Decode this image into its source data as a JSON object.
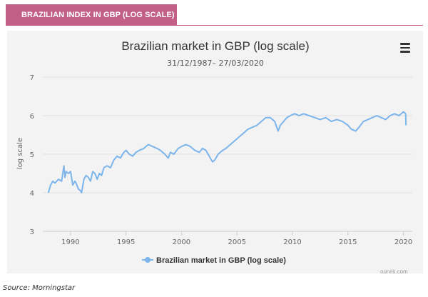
{
  "banner": {
    "title": "BRAZILIAN INDEX IN GBP (LOG SCALE)"
  },
  "source": "Source: Morningstar",
  "credit": "ourvis.com",
  "colors": {
    "banner": "#c15f87",
    "line": "#7cb5ec",
    "background": "#f3f3f3"
  },
  "menu_icon": "hamburger-menu-icon",
  "chart_data": {
    "type": "line",
    "title": "Brazilian market in GBP (log scale)",
    "subtitle": "31/12/1987– 27/03/2020",
    "xlabel": "",
    "ylabel": "log scale",
    "xlim": [
      1987.5,
      2020.8
    ],
    "ylim": [
      3,
      7
    ],
    "y_ticks": [
      "3",
      "4",
      "5",
      "6",
      "7"
    ],
    "x_ticks": [
      "1990",
      "1995",
      "2000",
      "2005",
      "2010",
      "2015",
      "2020"
    ],
    "grid": "horizontal",
    "legend": "bottom-center",
    "series": [
      {
        "name": "Brazilian market in GBP (log scale)",
        "x": [
          1988.0,
          1988.2,
          1988.4,
          1988.6,
          1988.9,
          1989.2,
          1989.4,
          1989.5,
          1989.6,
          1989.8,
          1990.0,
          1990.2,
          1990.4,
          1990.5,
          1990.7,
          1990.9,
          1991.0,
          1991.2,
          1991.4,
          1991.6,
          1991.8,
          1992.0,
          1992.2,
          1992.4,
          1992.6,
          1992.8,
          1993.0,
          1993.3,
          1993.6,
          1993.9,
          1994.2,
          1994.5,
          1994.8,
          1995.0,
          1995.3,
          1995.6,
          1995.9,
          1996.2,
          1996.6,
          1997.0,
          1997.4,
          1997.8,
          1998.1,
          1998.5,
          1998.8,
          1999.0,
          1999.3,
          1999.7,
          2000.0,
          2000.4,
          2000.8,
          2001.2,
          2001.6,
          2001.9,
          2002.2,
          2002.5,
          2002.8,
          2003.0,
          2003.3,
          2003.7,
          2004.0,
          2004.4,
          2004.8,
          2005.2,
          2005.6,
          2006.0,
          2006.4,
          2006.8,
          2007.2,
          2007.6,
          2008.0,
          2008.4,
          2008.7,
          2008.9,
          2009.2,
          2009.5,
          2009.8,
          2010.2,
          2010.6,
          2011.0,
          2011.5,
          2012.0,
          2012.5,
          2013.0,
          2013.5,
          2014.0,
          2014.5,
          2015.0,
          2015.3,
          2015.7,
          2016.0,
          2016.4,
          2016.8,
          2017.2,
          2017.6,
          2018.0,
          2018.4,
          2018.8,
          2019.2,
          2019.6,
          2020.0,
          2020.2,
          2020.23
        ],
        "values": [
          4.0,
          4.2,
          4.3,
          4.25,
          4.35,
          4.3,
          4.7,
          4.4,
          4.55,
          4.5,
          4.55,
          4.2,
          4.3,
          4.25,
          4.1,
          4.05,
          4.0,
          4.35,
          4.45,
          4.4,
          4.3,
          4.55,
          4.5,
          4.35,
          4.5,
          4.45,
          4.65,
          4.7,
          4.65,
          4.85,
          4.95,
          4.9,
          5.05,
          5.1,
          5.0,
          4.95,
          5.05,
          5.1,
          5.15,
          5.25,
          5.2,
          5.15,
          5.1,
          5.0,
          4.9,
          5.05,
          5.0,
          5.15,
          5.2,
          5.25,
          5.2,
          5.1,
          5.05,
          5.15,
          5.1,
          4.95,
          4.8,
          4.85,
          5.0,
          5.1,
          5.15,
          5.25,
          5.35,
          5.45,
          5.55,
          5.65,
          5.7,
          5.75,
          5.85,
          5.95,
          5.95,
          5.85,
          5.6,
          5.75,
          5.85,
          5.95,
          6.0,
          6.05,
          6.0,
          6.05,
          6.0,
          5.95,
          5.9,
          5.95,
          5.85,
          5.9,
          5.85,
          5.75,
          5.65,
          5.6,
          5.7,
          5.85,
          5.9,
          5.95,
          6.0,
          5.95,
          5.9,
          6.0,
          6.05,
          6.0,
          6.1,
          6.05,
          5.75
        ]
      }
    ]
  }
}
